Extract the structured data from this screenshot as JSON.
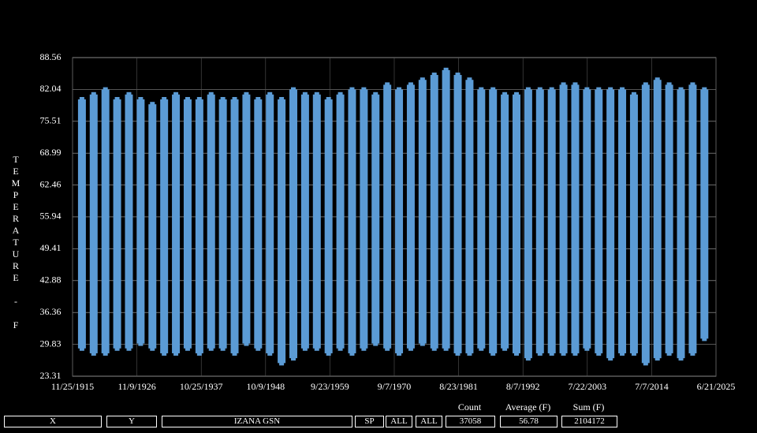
{
  "chart_data": {
    "type": "range",
    "y_label": "TEMPERATURE - F",
    "x": [
      "7/1/1917",
      "7/1/1919",
      "7/1/1921",
      "7/1/1923",
      "7/1/1925",
      "7/1/1927",
      "7/1/1929",
      "7/1/1931",
      "7/1/1933",
      "7/1/1935",
      "7/1/1937",
      "7/1/1939",
      "7/1/1941",
      "7/1/1943",
      "7/1/1945",
      "7/1/1947",
      "7/1/1949",
      "7/1/1951",
      "7/1/1953",
      "7/1/1955",
      "7/1/1957",
      "7/1/1959",
      "7/1/1961",
      "7/1/1963",
      "7/1/1965",
      "7/1/1967",
      "7/1/1969",
      "7/1/1971",
      "7/1/1973",
      "7/1/1975",
      "7/1/1977",
      "7/1/1979",
      "7/1/1981",
      "7/1/1983",
      "7/1/1985",
      "7/1/1987",
      "7/1/1989",
      "7/1/1991",
      "7/1/1993",
      "7/1/1995",
      "7/1/1997",
      "7/1/1999",
      "7/1/2001",
      "7/1/2003",
      "7/1/2005",
      "7/1/2007",
      "7/1/2009",
      "7/1/2011",
      "7/1/2013",
      "7/1/2015",
      "7/1/2017",
      "7/1/2019",
      "7/1/2021",
      "7/1/2023"
    ],
    "series": [
      {
        "color": "#5b9bd5",
        "values": [
          29,
          28,
          28,
          29,
          29,
          30,
          29,
          28,
          28,
          29,
          28,
          29,
          29,
          28,
          30,
          29,
          28,
          26,
          27,
          29,
          29,
          28,
          29,
          28,
          29,
          30,
          29,
          28,
          29,
          30,
          29,
          29,
          28,
          28,
          29,
          28,
          29,
          28,
          27,
          28,
          28,
          28,
          28,
          29,
          28,
          27,
          28,
          28,
          26,
          27,
          28,
          27,
          28,
          31
        ]
      },
      {
        "color": "#5b9bd5",
        "values": [
          80,
          81,
          82,
          80,
          81,
          80,
          79,
          80,
          81,
          80,
          80,
          81,
          80,
          80,
          81,
          80,
          81,
          80,
          82,
          81,
          81,
          80,
          81,
          82,
          82,
          81,
          83,
          82,
          83,
          84,
          85,
          86,
          85,
          84,
          82,
          82,
          81,
          81,
          82,
          82,
          82,
          83,
          83,
          82,
          82,
          82,
          82,
          81,
          83,
          84,
          83,
          82,
          83,
          82
        ]
      }
    ],
    "xlim": [
      "11/25/1915",
      "6/21/2025"
    ],
    "xticks": [
      "11/25/1915",
      "11/9/1926",
      "10/25/1937",
      "10/9/1948",
      "9/23/1959",
      "9/7/1970",
      "8/23/1981",
      "8/7/1992",
      "7/22/2003",
      "7/7/2014",
      "6/21/2025"
    ],
    "ylim": [
      23.31,
      88.56
    ],
    "yticks": [
      23.31,
      29.83,
      36.36,
      42.88,
      49.41,
      55.94,
      62.46,
      68.99,
      75.51,
      82.04,
      88.56
    ],
    "grid": true
  },
  "footer": {
    "cells": [
      "X",
      "Y",
      "IZANA GSN",
      "SP",
      "ALL",
      "ALL"
    ],
    "stats": [
      {
        "label": "Count",
        "value": "37058"
      },
      {
        "label": "Average (F)",
        "value": "56.78"
      },
      {
        "label": "Sum (F)",
        "value": "2104172"
      }
    ]
  }
}
